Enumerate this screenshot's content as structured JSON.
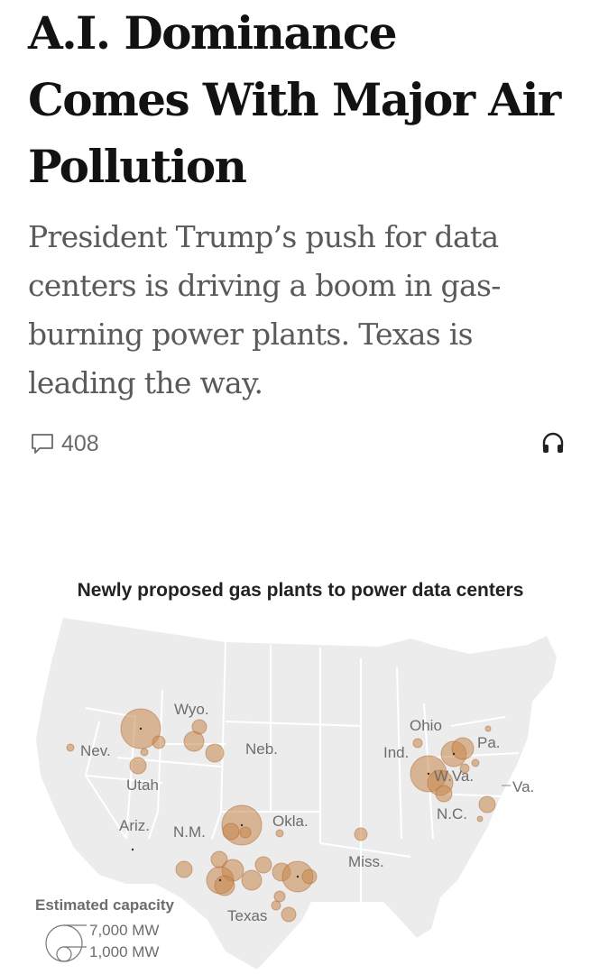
{
  "article": {
    "headline": "A.I. Dominance Comes With Major Air Pollution",
    "dek": "President Trump’s push for data centers is driving a boom in gas-burning power plants. Texas is leading the way.",
    "comment_count": "408",
    "icons": {
      "comments": "speech-bubble-icon",
      "listen": "headphones-icon"
    }
  },
  "graphic": {
    "title": "Newly proposed gas plants to power data centers",
    "state_labels": [
      "Wyo.",
      "Ohio",
      "Pa.",
      "Nev.",
      "Neb.",
      "Ind.",
      "W.Va.",
      "Va.",
      "Utah",
      "N.C.",
      "Ariz.",
      "N.M.",
      "Okla.",
      "Miss.",
      "Texas"
    ],
    "legend": {
      "title": "Estimated capacity",
      "large": "7,000 MW",
      "small": "1,000 MW"
    },
    "colors": {
      "plant_fill": "#c7874d",
      "land": "#ececec",
      "state_border": "#ffffff"
    }
  }
}
